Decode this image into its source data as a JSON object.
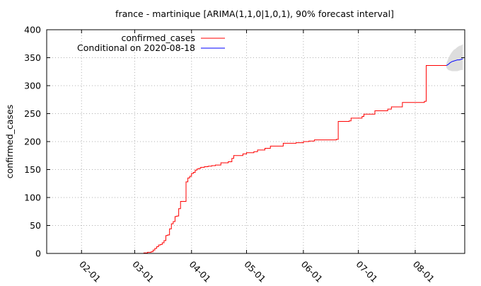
{
  "chart_data": {
    "type": "line",
    "title": "france - martinique [ARIMA(1,1,0|1,0,1), 90% forecast interval]",
    "ylabel": "confirmed_cases",
    "xlabel": "",
    "ylim": [
      0,
      400
    ],
    "yticks": [
      0,
      50,
      100,
      150,
      200,
      250,
      300,
      350,
      400
    ],
    "xlim": [
      "2020-01-13",
      "2020-08-28"
    ],
    "xticks": [
      {
        "date": "2020-02-01",
        "label": "02-01"
      },
      {
        "date": "2020-03-01",
        "label": "03-01"
      },
      {
        "date": "2020-04-01",
        "label": "04-01"
      },
      {
        "date": "2020-05-01",
        "label": "05-01"
      },
      {
        "date": "2020-06-01",
        "label": "06-01"
      },
      {
        "date": "2020-07-01",
        "label": "07-01"
      },
      {
        "date": "2020-08-01",
        "label": "08-01"
      }
    ],
    "grid": true,
    "legend_position": "top-left",
    "series": [
      {
        "name": "confirmed_cases",
        "color": "#ff0000",
        "step": true,
        "points": [
          [
            "2020-03-06",
            1
          ],
          [
            "2020-03-08",
            2
          ],
          [
            "2020-03-10",
            3
          ],
          [
            "2020-03-11",
            6
          ],
          [
            "2020-03-12",
            9
          ],
          [
            "2020-03-13",
            12
          ],
          [
            "2020-03-14",
            15
          ],
          [
            "2020-03-15",
            16
          ],
          [
            "2020-03-16",
            19
          ],
          [
            "2020-03-17",
            23
          ],
          [
            "2020-03-18",
            32
          ],
          [
            "2020-03-19",
            33
          ],
          [
            "2020-03-20",
            44
          ],
          [
            "2020-03-21",
            53
          ],
          [
            "2020-03-22",
            57
          ],
          [
            "2020-03-23",
            66
          ],
          [
            "2020-03-24",
            67
          ],
          [
            "2020-03-25",
            80
          ],
          [
            "2020-03-26",
            93
          ],
          [
            "2020-03-27",
            93
          ],
          [
            "2020-03-28",
            93
          ],
          [
            "2020-03-29",
            128
          ],
          [
            "2020-03-30",
            135
          ],
          [
            "2020-03-31",
            138
          ],
          [
            "2020-04-01",
            143
          ],
          [
            "2020-04-02",
            145
          ],
          [
            "2020-04-03",
            149
          ],
          [
            "2020-04-04",
            151
          ],
          [
            "2020-04-05",
            152
          ],
          [
            "2020-04-06",
            154
          ],
          [
            "2020-04-08",
            155
          ],
          [
            "2020-04-10",
            156
          ],
          [
            "2020-04-12",
            157
          ],
          [
            "2020-04-14",
            158
          ],
          [
            "2020-04-17",
            162
          ],
          [
            "2020-04-21",
            164
          ],
          [
            "2020-04-23",
            170
          ],
          [
            "2020-04-24",
            175
          ],
          [
            "2020-04-29",
            178
          ],
          [
            "2020-05-01",
            180
          ],
          [
            "2020-05-05",
            182
          ],
          [
            "2020-05-07",
            185
          ],
          [
            "2020-05-11",
            188
          ],
          [
            "2020-05-14",
            192
          ],
          [
            "2020-05-21",
            197
          ],
          [
            "2020-05-28",
            198
          ],
          [
            "2020-06-01",
            200
          ],
          [
            "2020-06-04",
            201
          ],
          [
            "2020-06-07",
            203
          ],
          [
            "2020-06-19",
            204
          ],
          [
            "2020-06-20",
            236
          ],
          [
            "2020-06-26",
            237
          ],
          [
            "2020-06-27",
            242
          ],
          [
            "2020-07-03",
            245
          ],
          [
            "2020-07-04",
            249
          ],
          [
            "2020-07-10",
            255
          ],
          [
            "2020-07-17",
            258
          ],
          [
            "2020-07-19",
            262
          ],
          [
            "2020-07-25",
            270
          ],
          [
            "2020-08-06",
            272
          ],
          [
            "2020-08-07",
            336
          ],
          [
            "2020-08-18",
            336
          ]
        ]
      },
      {
        "name": "Conditional on 2020-08-18",
        "color": "#0000ff",
        "step": false,
        "points": [
          [
            "2020-08-18",
            336
          ],
          [
            "2020-08-19",
            338
          ],
          [
            "2020-08-20",
            341
          ],
          [
            "2020-08-21",
            343
          ],
          [
            "2020-08-22",
            344
          ],
          [
            "2020-08-23",
            345
          ],
          [
            "2020-08-24",
            346
          ],
          [
            "2020-08-25",
            346
          ],
          [
            "2020-08-26",
            347
          ],
          [
            "2020-08-27",
            348
          ]
        ]
      }
    ],
    "interval": {
      "color": "#dddddd",
      "points": [
        [
          "2020-08-18",
          332,
          340
        ],
        [
          "2020-08-19",
          328,
          348
        ],
        [
          "2020-08-20",
          327,
          355
        ],
        [
          "2020-08-21",
          326,
          360
        ],
        [
          "2020-08-22",
          326,
          364
        ],
        [
          "2020-08-23",
          326,
          366
        ],
        [
          "2020-08-24",
          326,
          369
        ],
        [
          "2020-08-25",
          327,
          371
        ],
        [
          "2020-08-26",
          328,
          372
        ],
        [
          "2020-08-27",
          328,
          374
        ]
      ]
    }
  }
}
